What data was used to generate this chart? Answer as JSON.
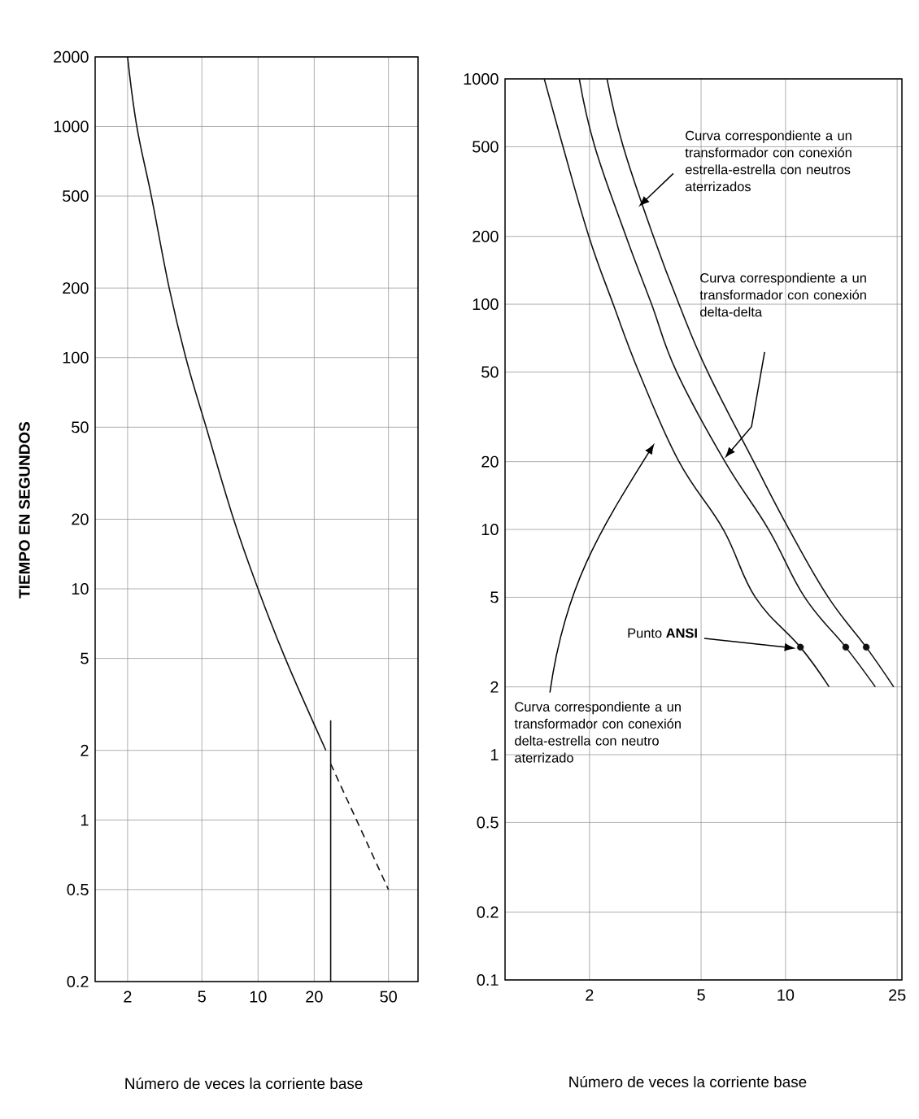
{
  "chart_data": [
    {
      "type": "line",
      "xlabel": "Número de veces la corriente base",
      "ylabel": "TIEMPO EN SEGUNDOS",
      "log": "xy",
      "xlim": [
        1.34,
        72
      ],
      "ylim": [
        0.2,
        2000
      ],
      "xticks": [
        2,
        5,
        10,
        20,
        50
      ],
      "yticks": [
        0.2,
        0.5,
        1,
        2,
        5,
        10,
        20,
        50,
        100,
        200,
        500,
        1000,
        2000
      ],
      "grid": true,
      "series": [
        {
          "color": "#111111",
          "x": [
            2,
            2.24,
            2.68,
            3.34,
            4.1,
            5.27,
            7.4,
            10,
            14,
            23.1
          ],
          "values": [
            2000,
            1000,
            500,
            200,
            100,
            50,
            20,
            10,
            5,
            2
          ]
        },
        {
          "color": "#111111",
          "x": [
            24.5,
            24.5
          ],
          "values": [
            0.2,
            2.7
          ]
        },
        {
          "color": "#111111",
          "x": [
            24.5,
            50
          ],
          "values": [
            1.75,
            0.5
          ],
          "line_style": "dashed"
        }
      ]
    },
    {
      "type": "line",
      "xlabel": "Número de veces la corriente base",
      "log": "xy",
      "xlim": [
        1,
        26
      ],
      "ylim": [
        0.1,
        1000
      ],
      "xticks": [
        2,
        5,
        10,
        25
      ],
      "yticks": [
        0.1,
        0.2,
        0.5,
        1,
        2,
        5,
        10,
        20,
        50,
        100,
        200,
        500,
        1000
      ],
      "grid": true,
      "series": [
        {
          "color": "#111111",
          "x": [
            1.38,
            1.61,
            1.99,
            2.43,
            3.0,
            4.17,
            6.0,
            7.8,
            11.3,
            14.3
          ],
          "values": [
            1000,
            500,
            200,
            100,
            50,
            20,
            10,
            5,
            3,
            2
          ]
        },
        {
          "color": "#111111",
          "x": [
            1.84,
            2.09,
            2.7,
            3.33,
            4.09,
            6.08,
            8.7,
            11.7,
            16.4,
            20.9
          ],
          "values": [
            1000,
            500,
            200,
            100,
            50,
            20,
            10,
            5,
            3,
            2
          ]
        },
        {
          "color": "#111111",
          "x": [
            2.31,
            2.64,
            3.38,
            4.17,
            5.28,
            7.7,
            10.3,
            14.2,
            19.4,
            24.3
          ],
          "values": [
            1000,
            500,
            200,
            100,
            50,
            20,
            10,
            5,
            3,
            2
          ]
        },
        {
          "type": "scatter",
          "color": "#111111",
          "x": [
            11.3,
            16.4,
            19.4
          ],
          "values": [
            3,
            3,
            3
          ]
        }
      ],
      "annotations": [
        "Curva correspondiente a un transformador con conexión estrella-estrella con neutros aterrizados",
        "Curva correspondiente a un transformador con conexión delta-delta",
        "Curva correspondiente a un transformador con conexión delta-estrella con neutro aterrizado",
        "Punto **ANSI**"
      ]
    }
  ]
}
